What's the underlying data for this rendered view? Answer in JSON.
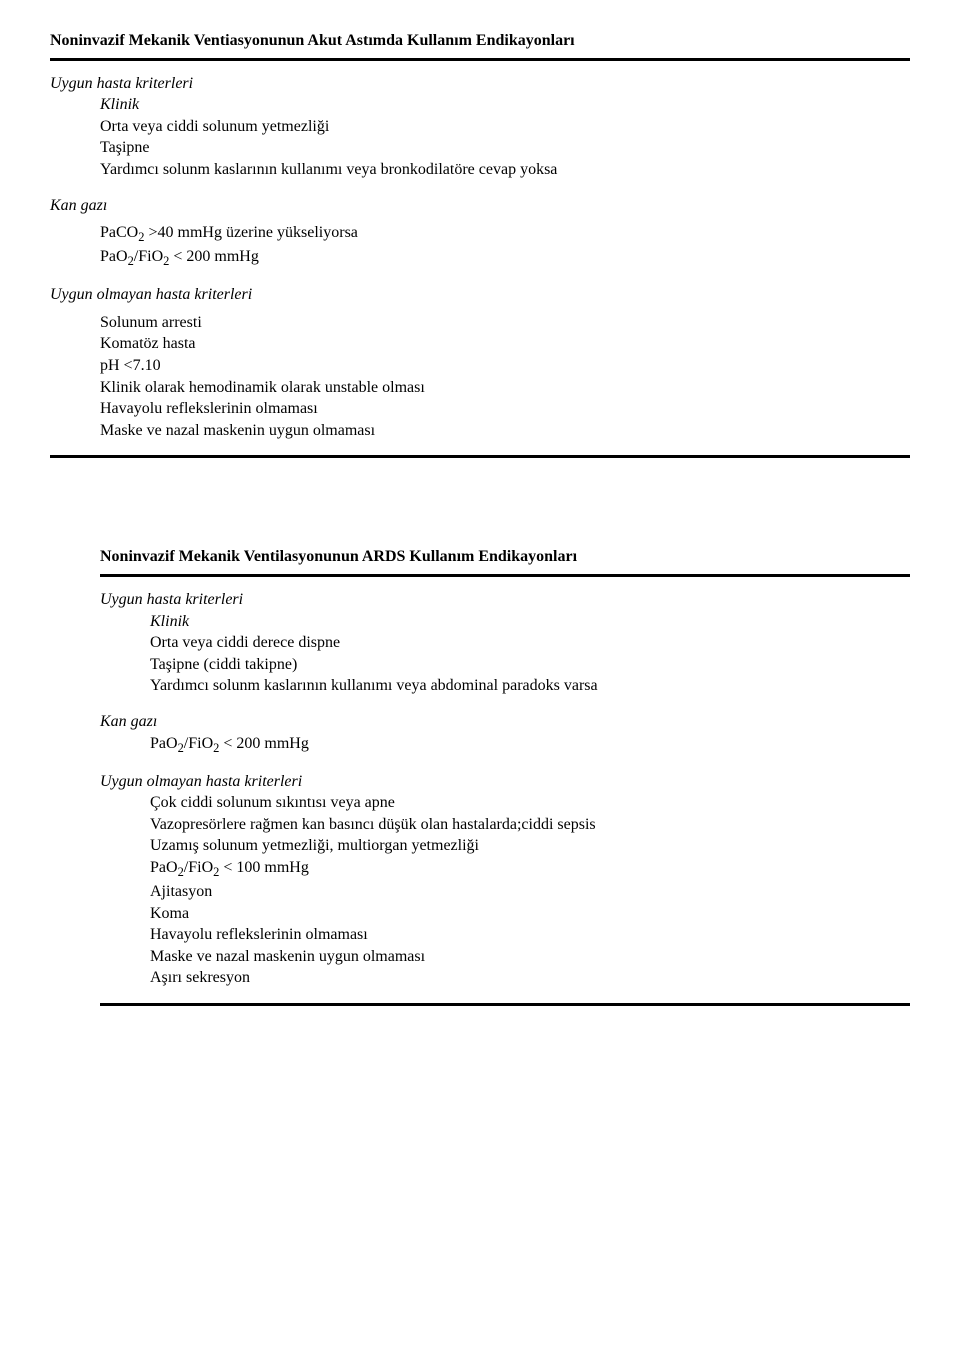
{
  "doc": {
    "title1": "Noninvazif Mekanik Ventiasyonunun Akut Astımda Kullanım Endikayonları",
    "sec1": {
      "uygun_header": "Uygun hasta kriterleri",
      "klinik_label": "Klinik",
      "klinik_lines": {
        "l1": "Orta veya ciddi solunum yetmezliği",
        "l2": "Taşipne",
        "l3": "Yardımcı solunm kaslarının kullanımı veya bronkodilatöre cevap yoksa"
      },
      "kangazi_label": "Kan gazı",
      "kangazi_lines": {
        "l1_pre": "PaCO",
        "l1_sub": "2",
        "l1_post": " >40 mmHg üzerine yükseliyorsa",
        "l2_pre": "PaO",
        "l2_sub1": "2",
        "l2_mid": "/FiO",
        "l2_sub2": "2",
        "l2_post": " < 200 mmHg"
      },
      "uygun_olmayan_header": "Uygun olmayan hasta kriterleri",
      "olmayan_lines": {
        "l1": "Solunum arresti",
        "l2": "Komatöz hasta",
        "l3": "pH <7.10",
        "l4": "Klinik olarak hemodinamik olarak unstable olması",
        "l5": "Havayolu reflekslerinin olmaması",
        "l6": "Maske ve nazal maskenin uygun olmaması"
      }
    },
    "title2": "Noninvazif Mekanik Ventilasyonunun ARDS Kullanım Endikayonları",
    "sec2": {
      "uygun_header": "Uygun hasta kriterleri",
      "klinik_label": "Klinik",
      "klinik_lines": {
        "l1": "Orta veya ciddi derece dispne",
        "l2": "Taşipne (ciddi takipne)",
        "l3": "Yardımcı solunm kaslarının kullanımı veya abdominal paradoks varsa"
      },
      "kangazi_label": "Kan gazı",
      "kangazi_lines": {
        "l1_pre": "PaO",
        "l1_sub1": "2",
        "l1_mid": "/FiO",
        "l1_sub2": "2",
        "l1_post": " < 200 mmHg"
      },
      "uygun_olmayan_header": "Uygun olmayan hasta kriterleri",
      "olmayan_lines": {
        "l1": "Çok ciddi solunum sıkıntısı veya apne",
        "l2": "Vazopresörlere rağmen kan basıncı düşük olan hastalarda;ciddi sepsis",
        "l3": "Uzamış solunum yetmezliği, multiorgan yetmezliği",
        "l4_pre": "PaO",
        "l4_sub1": "2",
        "l4_mid": "/FiO",
        "l4_sub2": "2",
        "l4_post": " < 100 mmHg",
        "l5": "Ajitasyon",
        "l6": "Koma",
        "l7": "Havayolu reflekslerinin olmaması",
        "l8": "Maske ve nazal maskenin uygun olmaması",
        "l9": "Aşırı sekresyon"
      }
    }
  }
}
